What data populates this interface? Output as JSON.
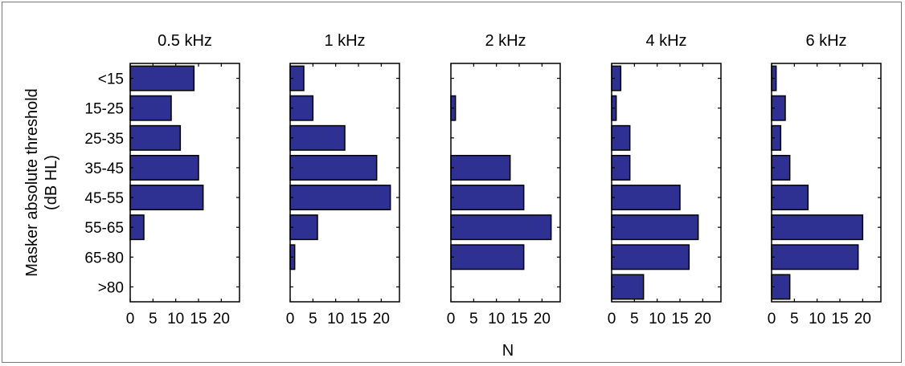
{
  "chart_data": {
    "type": "bar",
    "orientation": "horizontal",
    "categories": [
      "<15",
      "15-25",
      "25-35",
      "35-45",
      "45-55",
      "55-65",
      "65-80",
      ">80"
    ],
    "ylabel": "Masker absolute threshold\n(dB HL)",
    "xlabel": "N",
    "xlim": [
      0,
      24
    ],
    "xticks": [
      "0",
      "5",
      "10",
      "15",
      "20"
    ],
    "bar_color": "#2e3192",
    "panels": [
      {
        "title": "0.5 kHz",
        "values": [
          14,
          9,
          11,
          15,
          16,
          3,
          0,
          0
        ]
      },
      {
        "title": "1 kHz",
        "values": [
          3,
          5,
          12,
          19,
          22,
          6,
          1,
          0
        ]
      },
      {
        "title": "2 kHz",
        "values": [
          0,
          1,
          0,
          13,
          16,
          22,
          16,
          0
        ]
      },
      {
        "title": "4 kHz",
        "values": [
          2,
          1,
          4,
          4,
          15,
          19,
          17,
          7
        ]
      },
      {
        "title": "6 kHz",
        "values": [
          1,
          3,
          2,
          4,
          8,
          20,
          19,
          4
        ]
      }
    ]
  }
}
